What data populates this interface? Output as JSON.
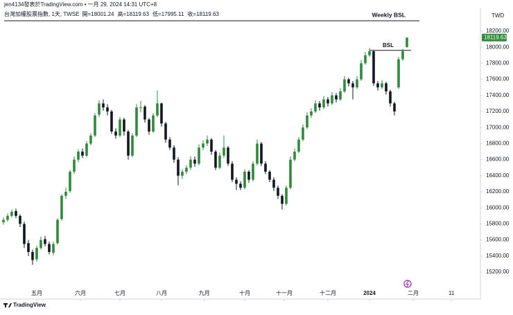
{
  "header": {
    "byline": "jen4134發表於TradingView.com • 一月 29, 2024 14:31 UTC+8",
    "symbol": "台灣加權股票指數, 1天, TWSE",
    "ohlc": [
      "開=18001.24",
      "高=18119.63",
      "低=17995.11",
      "收=18119.63"
    ]
  },
  "chart_data": {
    "type": "candlestick",
    "title": "Weekly BSL",
    "currency": "TWD",
    "up_color": "#2f8a3a",
    "down_color": "#131722",
    "candles": [
      [
        15820,
        15880,
        15790,
        15850
      ],
      [
        15850,
        15930,
        15830,
        15900
      ],
      [
        15900,
        15980,
        15880,
        15950
      ],
      [
        15960,
        15990,
        15870,
        15900
      ],
      [
        15900,
        15920,
        15760,
        15800
      ],
      [
        15800,
        15830,
        15500,
        15550
      ],
      [
        15560,
        15600,
        15400,
        15450
      ],
      [
        15450,
        15480,
        15290,
        15350
      ],
      [
        15360,
        15530,
        15330,
        15500
      ],
      [
        15500,
        15640,
        15480,
        15600
      ],
      [
        15610,
        15650,
        15520,
        15550
      ],
      [
        15550,
        15580,
        15420,
        15450
      ],
      [
        15440,
        15580,
        15410,
        15550
      ],
      [
        15560,
        15870,
        15540,
        15850
      ],
      [
        15860,
        16170,
        15840,
        16150
      ],
      [
        16150,
        16250,
        16110,
        16200
      ],
      [
        16210,
        16470,
        16190,
        16450
      ],
      [
        16450,
        16640,
        16420,
        16600
      ],
      [
        16600,
        16730,
        16570,
        16700
      ],
      [
        16700,
        16740,
        16620,
        16650
      ],
      [
        16650,
        16830,
        16630,
        16800
      ],
      [
        16800,
        16930,
        16780,
        16900
      ],
      [
        16900,
        17180,
        16880,
        17150
      ],
      [
        17160,
        17340,
        17130,
        17300
      ],
      [
        17300,
        17350,
        17210,
        17250
      ],
      [
        17250,
        17290,
        17150,
        17200
      ],
      [
        17200,
        17220,
        16920,
        16950
      ],
      [
        16950,
        16990,
        16860,
        16900
      ],
      [
        16900,
        17130,
        16880,
        17100
      ],
      [
        17100,
        17120,
        16900,
        16950
      ],
      [
        16950,
        16970,
        16600,
        16650
      ],
      [
        16650,
        16930,
        16630,
        16900
      ],
      [
        16900,
        17290,
        16880,
        17250
      ],
      [
        17250,
        17330,
        17190,
        17250
      ],
      [
        17260,
        17280,
        17060,
        17100
      ],
      [
        17100,
        17120,
        16910,
        16950
      ],
      [
        16950,
        17180,
        16930,
        17150
      ],
      [
        17150,
        17460,
        17130,
        17300
      ],
      [
        17300,
        17310,
        17010,
        17050
      ],
      [
        17050,
        17070,
        16810,
        16850
      ],
      [
        16850,
        16880,
        16720,
        16750
      ],
      [
        16750,
        16780,
        16560,
        16600
      ],
      [
        16600,
        16630,
        16280,
        16400
      ],
      [
        16400,
        16480,
        16360,
        16450
      ],
      [
        16450,
        16530,
        16420,
        16500
      ],
      [
        16500,
        16640,
        16470,
        16600
      ],
      [
        16600,
        16640,
        16510,
        16550
      ],
      [
        16550,
        16790,
        16530,
        16750
      ],
      [
        16750,
        16840,
        16720,
        16800
      ],
      [
        16800,
        16900,
        16770,
        16850
      ],
      [
        16850,
        16870,
        16660,
        16700
      ],
      [
        16700,
        16720,
        16470,
        16500
      ],
      [
        16500,
        16690,
        16480,
        16650
      ],
      [
        16650,
        16900,
        16620,
        16750
      ],
      [
        16750,
        16770,
        16520,
        16550
      ],
      [
        16550,
        16580,
        16320,
        16350
      ],
      [
        16350,
        16380,
        16220,
        16300
      ],
      [
        16300,
        16330,
        16220,
        16250
      ],
      [
        16250,
        16480,
        16230,
        16450
      ],
      [
        16450,
        16470,
        16310,
        16350
      ],
      [
        16350,
        16580,
        16330,
        16550
      ],
      [
        16550,
        16850,
        16530,
        16800
      ],
      [
        16800,
        16820,
        16520,
        16550
      ],
      [
        16550,
        16580,
        16420,
        16450
      ],
      [
        16450,
        16470,
        16320,
        16350
      ],
      [
        16350,
        16380,
        16210,
        16250
      ],
      [
        16250,
        16280,
        16110,
        16150
      ],
      [
        16150,
        16170,
        15980,
        16050
      ],
      [
        16050,
        16280,
        16030,
        16250
      ],
      [
        16250,
        16640,
        16230,
        16600
      ],
      [
        16600,
        16740,
        16580,
        16700
      ],
      [
        16700,
        16880,
        16680,
        16850
      ],
      [
        16850,
        17040,
        16830,
        17000
      ],
      [
        17000,
        17190,
        16980,
        17150
      ],
      [
        17150,
        17240,
        17120,
        17200
      ],
      [
        17200,
        17340,
        17180,
        17300
      ],
      [
        17300,
        17330,
        17210,
        17250
      ],
      [
        17250,
        17390,
        17230,
        17350
      ],
      [
        17350,
        17380,
        17260,
        17300
      ],
      [
        17300,
        17440,
        17280,
        17400
      ],
      [
        17400,
        17430,
        17310,
        17350
      ],
      [
        17350,
        17490,
        17330,
        17450
      ],
      [
        17450,
        17640,
        17430,
        17600
      ],
      [
        17600,
        17620,
        17510,
        17550
      ],
      [
        17550,
        17580,
        17350,
        17500
      ],
      [
        17500,
        17640,
        17480,
        17600
      ],
      [
        17600,
        17840,
        17580,
        17800
      ],
      [
        17800,
        17940,
        17780,
        17900
      ],
      [
        17900,
        17990,
        17880,
        17950
      ],
      [
        17950,
        17960,
        17520,
        17550
      ],
      [
        17550,
        17580,
        17460,
        17500
      ],
      [
        17500,
        17590,
        17480,
        17550
      ],
      [
        17550,
        17570,
        17410,
        17450
      ],
      [
        17450,
        17470,
        17260,
        17300
      ],
      [
        17300,
        17320,
        17150,
        17200
      ],
      [
        17500,
        17880,
        17480,
        17850
      ],
      [
        17850,
        17980,
        17830,
        17950
      ],
      [
        18001.24,
        18119.63,
        17995.11,
        18119.63
      ]
    ],
    "xlim": [
      -0.83,
      114.67
    ],
    "xticks": [
      {
        "value": 8,
        "label": "五月"
      },
      {
        "value": 18.5,
        "label": "六月"
      },
      {
        "value": 28,
        "label": "七月"
      },
      {
        "value": 38,
        "label": "八月"
      },
      {
        "value": 48.3,
        "label": "九月"
      },
      {
        "value": 58,
        "label": "十月"
      },
      {
        "value": 67.5,
        "label": "十一月"
      },
      {
        "value": 78,
        "label": "十二月"
      },
      {
        "value": 88,
        "label": "2024"
      },
      {
        "value": 98.5,
        "label": "二月"
      },
      {
        "value": 107.7,
        "label": "11"
      }
    ],
    "ylim": [
      15002,
      18484
    ],
    "yticks": [
      {
        "value": 15200,
        "label": "15200.00"
      },
      {
        "value": 15400,
        "label": "15400.00"
      },
      {
        "value": 15600,
        "label": "15600.00"
      },
      {
        "value": 15800,
        "label": "15800.00"
      },
      {
        "value": 16000,
        "label": "16000.00"
      },
      {
        "value": 16200,
        "label": "16200.00"
      },
      {
        "value": 16400,
        "label": "16400.00"
      },
      {
        "value": 16600,
        "label": "16600.00"
      },
      {
        "value": 16800,
        "label": "16800.00"
      },
      {
        "value": 17000,
        "label": "17000.00"
      },
      {
        "value": 17200,
        "label": "17200.00"
      },
      {
        "value": 17400,
        "label": "17400.00"
      },
      {
        "value": 17600,
        "label": "17600.00"
      },
      {
        "value": 17800,
        "label": "17800.00"
      },
      {
        "value": 18000,
        "label": "18000.00"
      },
      {
        "value": 18200,
        "label": "18200.00"
      }
    ],
    "annotation": {
      "text": "BSL",
      "value": 17960,
      "x": [
        88,
        97
      ]
    },
    "grid": false
  },
  "footer": {
    "brand": "TradingView"
  }
}
